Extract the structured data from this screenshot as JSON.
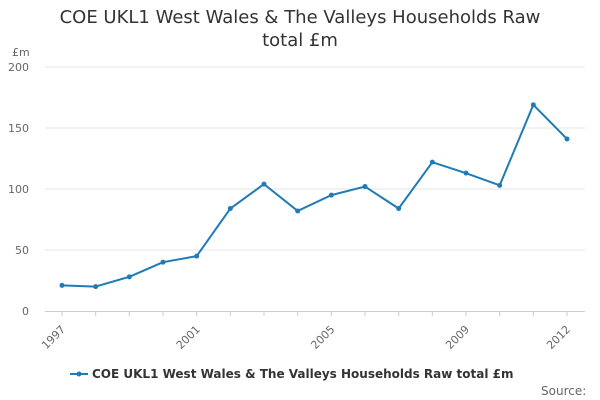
{
  "chart_data": {
    "type": "line",
    "title": "COE UKL1 West Wales & The Valleys Households Raw total £m",
    "ylabel": "£m",
    "xlabel": "",
    "ylim": [
      0,
      200
    ],
    "yticks": [
      0,
      50,
      100,
      150,
      200
    ],
    "xticks": [
      1997,
      2001,
      2005,
      2009,
      2012
    ],
    "grid": true,
    "legend": "bottom-center",
    "series": [
      {
        "name": "COE UKL1 West Wales & The Valleys Households Raw total £m",
        "color": "#1f7bb6",
        "x": [
          1997,
          1998,
          1999,
          2000,
          2001,
          2002,
          2003,
          2004,
          2005,
          2006,
          2007,
          2008,
          2009,
          2010,
          2011,
          2012
        ],
        "values": [
          21,
          20,
          28,
          40,
          45,
          84,
          104,
          82,
          95,
          102,
          84,
          122,
          113,
          103,
          169,
          141
        ]
      }
    ],
    "source_label": "Source:"
  }
}
